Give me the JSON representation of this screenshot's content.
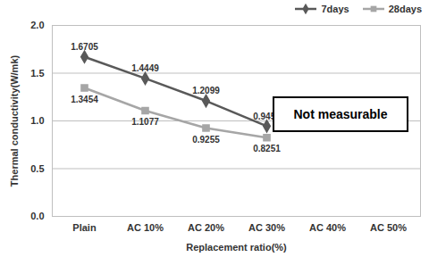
{
  "chart_data": {
    "type": "line",
    "categories": [
      "Plain",
      "AC 10%",
      "AC 20%",
      "AC 30%",
      "AC 40%",
      "AC 50%"
    ],
    "series": [
      {
        "name": "7days",
        "color": "#595959",
        "marker": "diamond",
        "values": [
          1.6705,
          1.4449,
          1.2099,
          0.9451,
          null,
          null
        ]
      },
      {
        "name": "28days",
        "color": "#a6a6a6",
        "marker": "square",
        "values": [
          1.3454,
          1.1077,
          0.9255,
          0.8251,
          null,
          null
        ]
      }
    ],
    "x_label": "Replacement ratio(%)",
    "y_label": "Thermal conductivity(W/mk)",
    "ylim": [
      0,
      2
    ],
    "yticks": [
      {
        "value": 0,
        "label": "0.0"
      },
      0.5,
      {
        "value": 1,
        "label": "1.0"
      },
      1.5,
      {
        "value": 2,
        "label": "2.0"
      }
    ],
    "grid": true,
    "legend": "top-right",
    "data_labels": true,
    "annotation": "Not measurable"
  }
}
